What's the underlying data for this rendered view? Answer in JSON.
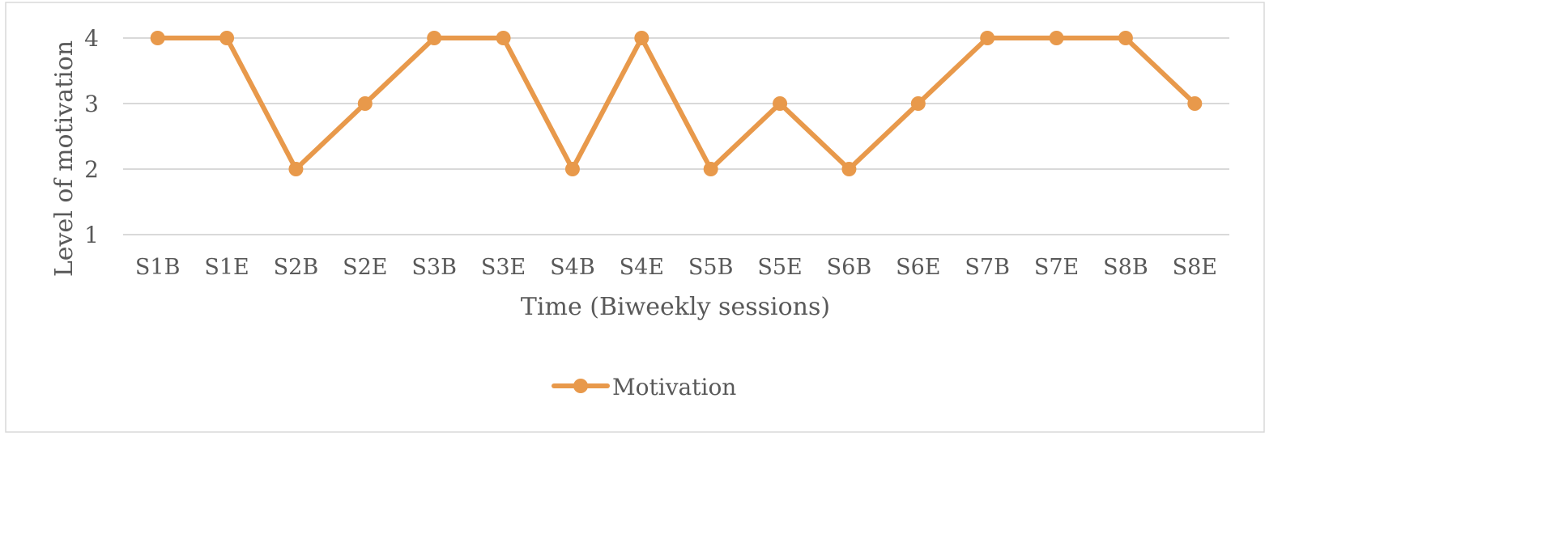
{
  "chart_data": {
    "type": "line",
    "title": "",
    "xlabel": "Time (Biweekly sessions)",
    "ylabel": "Level of motivation",
    "categories": [
      "S1B",
      "S1E",
      "S2B",
      "S2E",
      "S3B",
      "S3E",
      "S4B",
      "S4E",
      "S5B",
      "S5E",
      "S6B",
      "S6E",
      "S7B",
      "S7E",
      "S8B",
      "S8E"
    ],
    "series": [
      {
        "name": "Motivation",
        "values": [
          4,
          4,
          2,
          3,
          4,
          4,
          2,
          4,
          2,
          3,
          2,
          3,
          4,
          4,
          4,
          3
        ]
      }
    ],
    "ylim": [
      1,
      4
    ],
    "yticks": [
      1,
      2,
      3,
      4
    ],
    "grid": true,
    "legend_position": "bottom",
    "colors": {
      "series": "#E8994B",
      "grid": "#D9D9D9",
      "text": "#595959",
      "border": "#D9D9D9"
    }
  }
}
